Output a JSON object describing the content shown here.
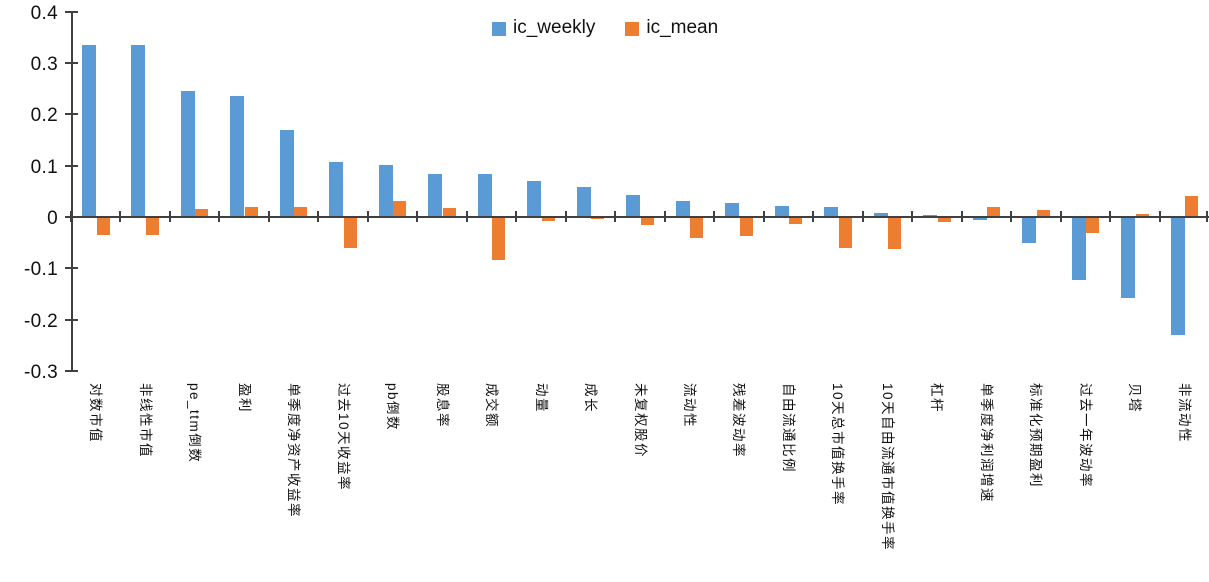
{
  "chart_data": {
    "type": "bar",
    "title": "",
    "xlabel": "",
    "ylabel": "",
    "grid": false,
    "legend_position": "top-center",
    "ylim": [
      -0.3,
      0.4
    ],
    "yticks": [
      0.4,
      0.3,
      0.2,
      0.1,
      0,
      -0.1,
      -0.2,
      -0.3
    ],
    "y_tick_labels": [
      "0.4",
      "0.3",
      "0.2",
      "0.1",
      "0",
      "-0.1",
      "-0.2",
      "-0.3"
    ],
    "categories": [
      "对数市值",
      "非线性市值",
      "pe_ttm倒数",
      "盈利",
      "单季度净资产收益率",
      "过去10天收益率",
      "pb倒数",
      "股息率",
      "成交额",
      "动量",
      "成长",
      "未复权股价",
      "流动性",
      "残差波动率",
      "自由流通比例",
      "10天总市值换手率",
      "10天自由流通市值换手率",
      "杠杆",
      "单季度净利润增速",
      "标准化预期盈利",
      "过去一年波动率",
      "贝塔",
      "非流动性"
    ],
    "series": [
      {
        "name": "ic_weekly",
        "color": "#5B9BD5",
        "values": [
          0.335,
          0.335,
          0.245,
          0.236,
          0.17,
          0.107,
          0.101,
          0.084,
          0.083,
          0.07,
          0.058,
          0.042,
          0.032,
          0.027,
          0.022,
          0.019,
          0.007,
          0.004,
          -0.005,
          -0.05,
          -0.123,
          -0.157,
          -0.23
        ]
      },
      {
        "name": "ic_mean",
        "color": "#ED7D31",
        "values": [
          -0.035,
          -0.035,
          0.016,
          0.02,
          0.02,
          -0.06,
          0.031,
          0.018,
          -0.083,
          -0.008,
          -0.004,
          -0.015,
          -0.04,
          -0.038,
          -0.013,
          -0.061,
          -0.063,
          -0.009,
          0.019,
          0.013,
          -0.032,
          0.005,
          0.04
        ]
      }
    ],
    "colors": {
      "axis": "#404040",
      "text": "#111111",
      "background": "#ffffff"
    }
  }
}
